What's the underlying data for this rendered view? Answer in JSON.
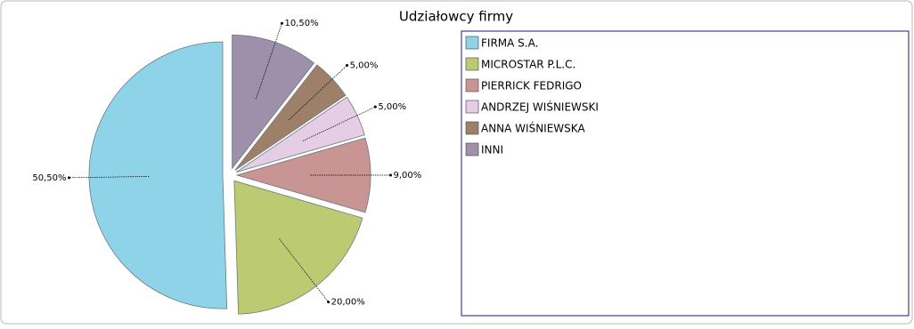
{
  "chart_data": {
    "type": "pie",
    "title": "Udziałowcy firmy",
    "categories": [
      "FIRMA S.A.",
      "MICROSTAR P.L.C.",
      "PIERRICK FEDRIGO",
      "ANDRZEJ WIŚNIEWSKI",
      "ANNA WIŚNIEWSKA",
      "INNI"
    ],
    "values": [
      50.5,
      20,
      9,
      5,
      5,
      10.5
    ],
    "value_labels": [
      "50,50%",
      "20,00%",
      "9,00%",
      "5,00%",
      "5,00%",
      "10,50%"
    ],
    "colors": [
      "#8fd3e8",
      "#bccb72",
      "#c99494",
      "#e6cde6",
      "#9e8069",
      "#9e8faa"
    ]
  }
}
